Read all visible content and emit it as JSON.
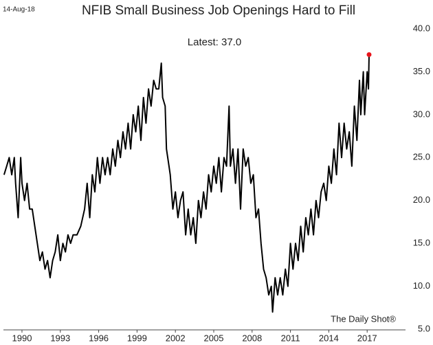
{
  "chart_data": {
    "type": "line",
    "title": "NFIB Small Business Job Openings Hard to Fill",
    "date": "14-Aug-18",
    "annotation": "Latest:  37.0",
    "source": "The Daily Shot®",
    "x": [
      1988.6,
      1988.8,
      1989.0,
      1989.2,
      1989.4,
      1989.5,
      1989.7,
      1989.9,
      1990.0,
      1990.2,
      1990.4,
      1990.6,
      1990.8,
      1991.0,
      1991.2,
      1991.4,
      1991.6,
      1991.8,
      1992.0,
      1992.2,
      1992.4,
      1992.6,
      1992.8,
      1993.0,
      1993.2,
      1993.4,
      1993.6,
      1993.8,
      1994.0,
      1994.3,
      1994.6,
      1994.9,
      1995.1,
      1995.3,
      1995.5,
      1995.7,
      1995.9,
      1996.1,
      1996.3,
      1996.5,
      1996.7,
      1996.9,
      1997.1,
      1997.3,
      1997.5,
      1997.7,
      1997.9,
      1998.1,
      1998.3,
      1998.5,
      1998.7,
      1998.9,
      1999.1,
      1999.3,
      1999.5,
      1999.7,
      1999.9,
      2000.1,
      2000.3,
      2000.5,
      2000.7,
      2000.9,
      2001.0,
      2001.2,
      2001.3,
      2001.5,
      2001.6,
      2001.8,
      2002.0,
      2002.2,
      2002.4,
      2002.6,
      2002.8,
      2003.0,
      2003.2,
      2003.4,
      2003.6,
      2003.8,
      2004.0,
      2004.2,
      2004.4,
      2004.6,
      2004.8,
      2005.0,
      2005.2,
      2005.4,
      2005.6,
      2005.8,
      2006.0,
      2006.2,
      2006.3,
      2006.5,
      2006.7,
      2006.9,
      2007.1,
      2007.3,
      2007.5,
      2007.7,
      2007.9,
      2008.1,
      2008.3,
      2008.5,
      2008.7,
      2008.9,
      2009.1,
      2009.3,
      2009.5,
      2009.6,
      2009.8,
      2010.0,
      2010.2,
      2010.4,
      2010.6,
      2010.8,
      2011.0,
      2011.2,
      2011.4,
      2011.6,
      2011.8,
      2012.0,
      2012.2,
      2012.4,
      2012.6,
      2012.8,
      2013.0,
      2013.2,
      2013.4,
      2013.6,
      2013.8,
      2014.0,
      2014.2,
      2014.4,
      2014.6,
      2014.8,
      2015.0,
      2015.2,
      2015.4,
      2015.6,
      2015.8,
      2016.0,
      2016.2,
      2016.4,
      2016.5,
      2016.7,
      2016.8,
      2017.0,
      2017.1,
      2017.15
    ],
    "series": [
      {
        "name": "NFIB job openings hard to fill",
        "color": "#000000",
        "values": [
          23,
          24,
          25,
          23,
          25,
          22,
          18,
          25,
          22,
          20,
          22,
          19,
          19,
          17,
          15,
          13,
          14,
          12,
          13,
          11,
          13,
          14,
          16,
          13,
          15,
          14,
          16,
          15,
          16,
          16,
          17,
          19,
          22,
          18,
          23,
          21,
          25,
          22,
          25,
          23,
          25,
          23,
          26,
          24,
          27,
          25,
          28,
          26,
          29,
          26,
          30,
          28,
          31,
          27,
          32,
          29,
          33,
          31,
          34,
          33,
          33,
          36,
          32,
          31,
          26,
          24,
          23,
          19,
          21,
          18,
          20,
          21,
          16,
          19,
          16,
          18,
          15,
          20,
          18,
          21,
          19,
          23,
          21,
          24,
          22,
          25,
          21,
          25,
          24,
          31,
          24,
          26,
          22,
          26,
          19,
          26,
          24,
          25,
          22,
          23,
          18,
          19,
          15,
          12,
          11,
          9,
          10,
          7,
          11,
          9,
          11,
          9,
          12,
          10,
          15,
          12,
          15,
          13,
          17,
          14,
          18,
          16,
          19,
          16,
          20,
          18,
          21,
          22,
          20,
          24,
          22,
          26,
          23,
          29,
          25,
          29,
          26,
          28,
          24,
          31,
          27,
          34,
          30,
          35,
          30,
          35,
          33,
          37
        ]
      }
    ],
    "last_point_color": "#e8141b",
    "xlim": [
      1988.55,
      2020
    ],
    "xticks": [
      1990,
      1993,
      1996,
      1999,
      2002,
      2005,
      2008,
      2011,
      2014,
      2017
    ],
    "ylim": [
      5,
      40
    ],
    "yticks": [
      {
        "value": 5,
        "label": "5.0"
      },
      {
        "value": 10,
        "label": "10.0"
      },
      {
        "value": 15,
        "label": "15.0"
      },
      {
        "value": 20,
        "label": "20.0"
      },
      {
        "value": 25,
        "label": "25.0"
      },
      {
        "value": 30,
        "label": "30.0"
      },
      {
        "value": 35,
        "label": "35.0"
      },
      {
        "value": 40,
        "label": "40.0"
      }
    ]
  }
}
